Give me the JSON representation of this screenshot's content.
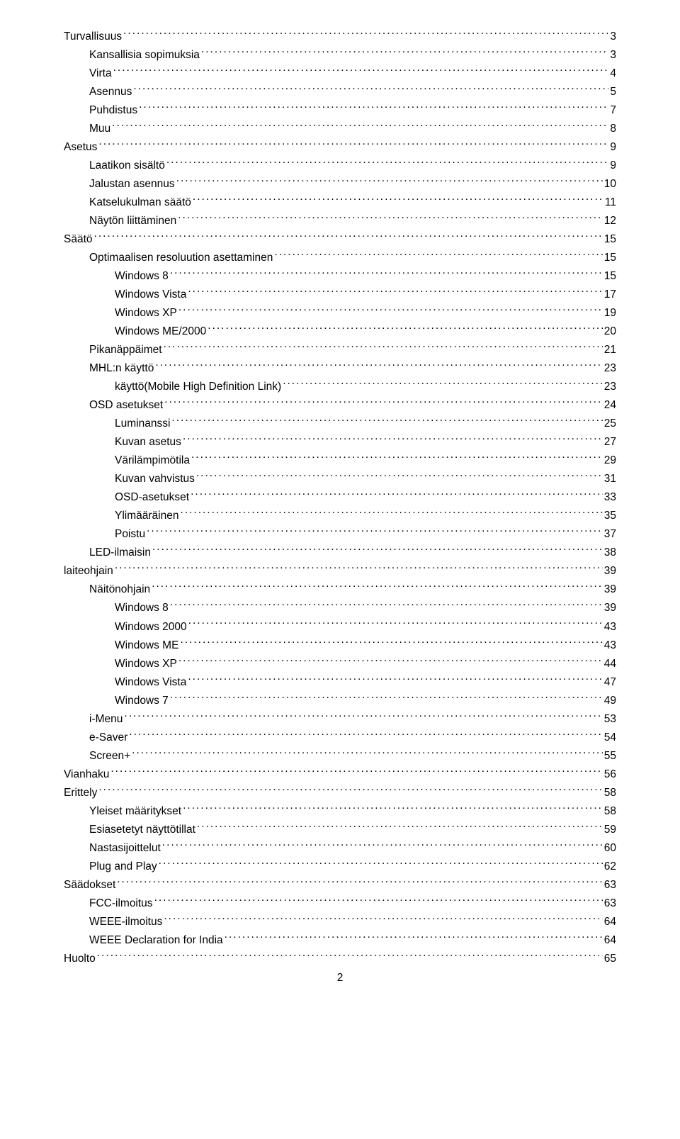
{
  "toc": [
    {
      "label": "Turvallisuus",
      "page": "3",
      "indent": 0
    },
    {
      "label": "Kansallisia sopimuksia",
      "page": "3",
      "indent": 1
    },
    {
      "label": "Virta",
      "page": "4",
      "indent": 1
    },
    {
      "label": "Asennus",
      "page": "5",
      "indent": 1
    },
    {
      "label": "Puhdistus",
      "page": "7",
      "indent": 1
    },
    {
      "label": "Muu",
      "page": "8",
      "indent": 1
    },
    {
      "label": "Asetus",
      "page": "9",
      "indent": 0
    },
    {
      "label": "Laatikon sisältö",
      "page": "9",
      "indent": 1
    },
    {
      "label": "Jalustan asennus",
      "page": "10",
      "indent": 1
    },
    {
      "label": "Katselukulman säätö",
      "page": "11",
      "indent": 1
    },
    {
      "label": "Näytön liittäminen",
      "page": "12",
      "indent": 1
    },
    {
      "label": "Säätö",
      "page": "15",
      "indent": 0
    },
    {
      "label": "Optimaalisen resoluution asettaminen",
      "page": "15",
      "indent": 1
    },
    {
      "label": "Windows 8",
      "page": "15",
      "indent": 2
    },
    {
      "label": "Windows Vista",
      "page": "17",
      "indent": 2
    },
    {
      "label": "Windows XP",
      "page": "19",
      "indent": 2
    },
    {
      "label": "Windows ME/2000",
      "page": "20",
      "indent": 2
    },
    {
      "label": "Pikanäppäimet",
      "page": "21",
      "indent": 1
    },
    {
      "label": "MHL:n käyttö",
      "page": "23",
      "indent": 1
    },
    {
      "label": "käyttö(Mobile High Definition Link)",
      "page": "23",
      "indent": 2
    },
    {
      "label": "OSD asetukset",
      "page": "24",
      "indent": 1
    },
    {
      "label": "Luminanssi",
      "page": "25",
      "indent": 2
    },
    {
      "label": "Kuvan asetus",
      "page": "27",
      "indent": 2
    },
    {
      "label": "Värilämpimötila",
      "page": "29",
      "indent": 2
    },
    {
      "label": "Kuvan vahvistus",
      "page": "31",
      "indent": 2
    },
    {
      "label": "OSD-asetukset",
      "page": "33",
      "indent": 2
    },
    {
      "label": "Ylimääräinen",
      "page": "35",
      "indent": 2
    },
    {
      "label": "Poistu",
      "page": "37",
      "indent": 2
    },
    {
      "label": "LED-ilmaisin",
      "page": "38",
      "indent": 1
    },
    {
      "label": "laiteohjain",
      "page": "39",
      "indent": 0
    },
    {
      "label": "Näitönohjain",
      "page": "39",
      "indent": 1
    },
    {
      "label": "Windows 8",
      "page": "39",
      "indent": 2
    },
    {
      "label": "Windows 2000",
      "page": "43",
      "indent": 2
    },
    {
      "label": "Windows ME",
      "page": "43",
      "indent": 2
    },
    {
      "label": "Windows XP",
      "page": "44",
      "indent": 2
    },
    {
      "label": "Windows Vista",
      "page": "47",
      "indent": 2
    },
    {
      "label": "Windows 7",
      "page": "49",
      "indent": 2
    },
    {
      "label": "i-Menu",
      "page": "53",
      "indent": 1
    },
    {
      "label": "e-Saver",
      "page": "54",
      "indent": 1
    },
    {
      "label": "Screen+",
      "page": "55",
      "indent": 1
    },
    {
      "label": "Vianhaku",
      "page": "56",
      "indent": 0
    },
    {
      "label": "Erittely",
      "page": "58",
      "indent": 0
    },
    {
      "label": "Yleiset määritykset",
      "page": "58",
      "indent": 1
    },
    {
      "label": "Esiasetetyt näyttötillat",
      "page": "59",
      "indent": 1
    },
    {
      "label": "Nastasijoittelut",
      "page": "60",
      "indent": 1
    },
    {
      "label": "Plug and Play",
      "page": "62",
      "indent": 1
    },
    {
      "label": "Säädokset",
      "page": "63",
      "indent": 0
    },
    {
      "label": "FCC-ilmoitus",
      "page": "63",
      "indent": 1
    },
    {
      "label": "WEEE-ilmoitus",
      "page": "64",
      "indent": 1
    },
    {
      "label": "WEEE Declaration for India",
      "page": "64",
      "indent": 1
    },
    {
      "label": "Huolto",
      "page": "65",
      "indent": 0
    }
  ],
  "footer_page_number": "2"
}
